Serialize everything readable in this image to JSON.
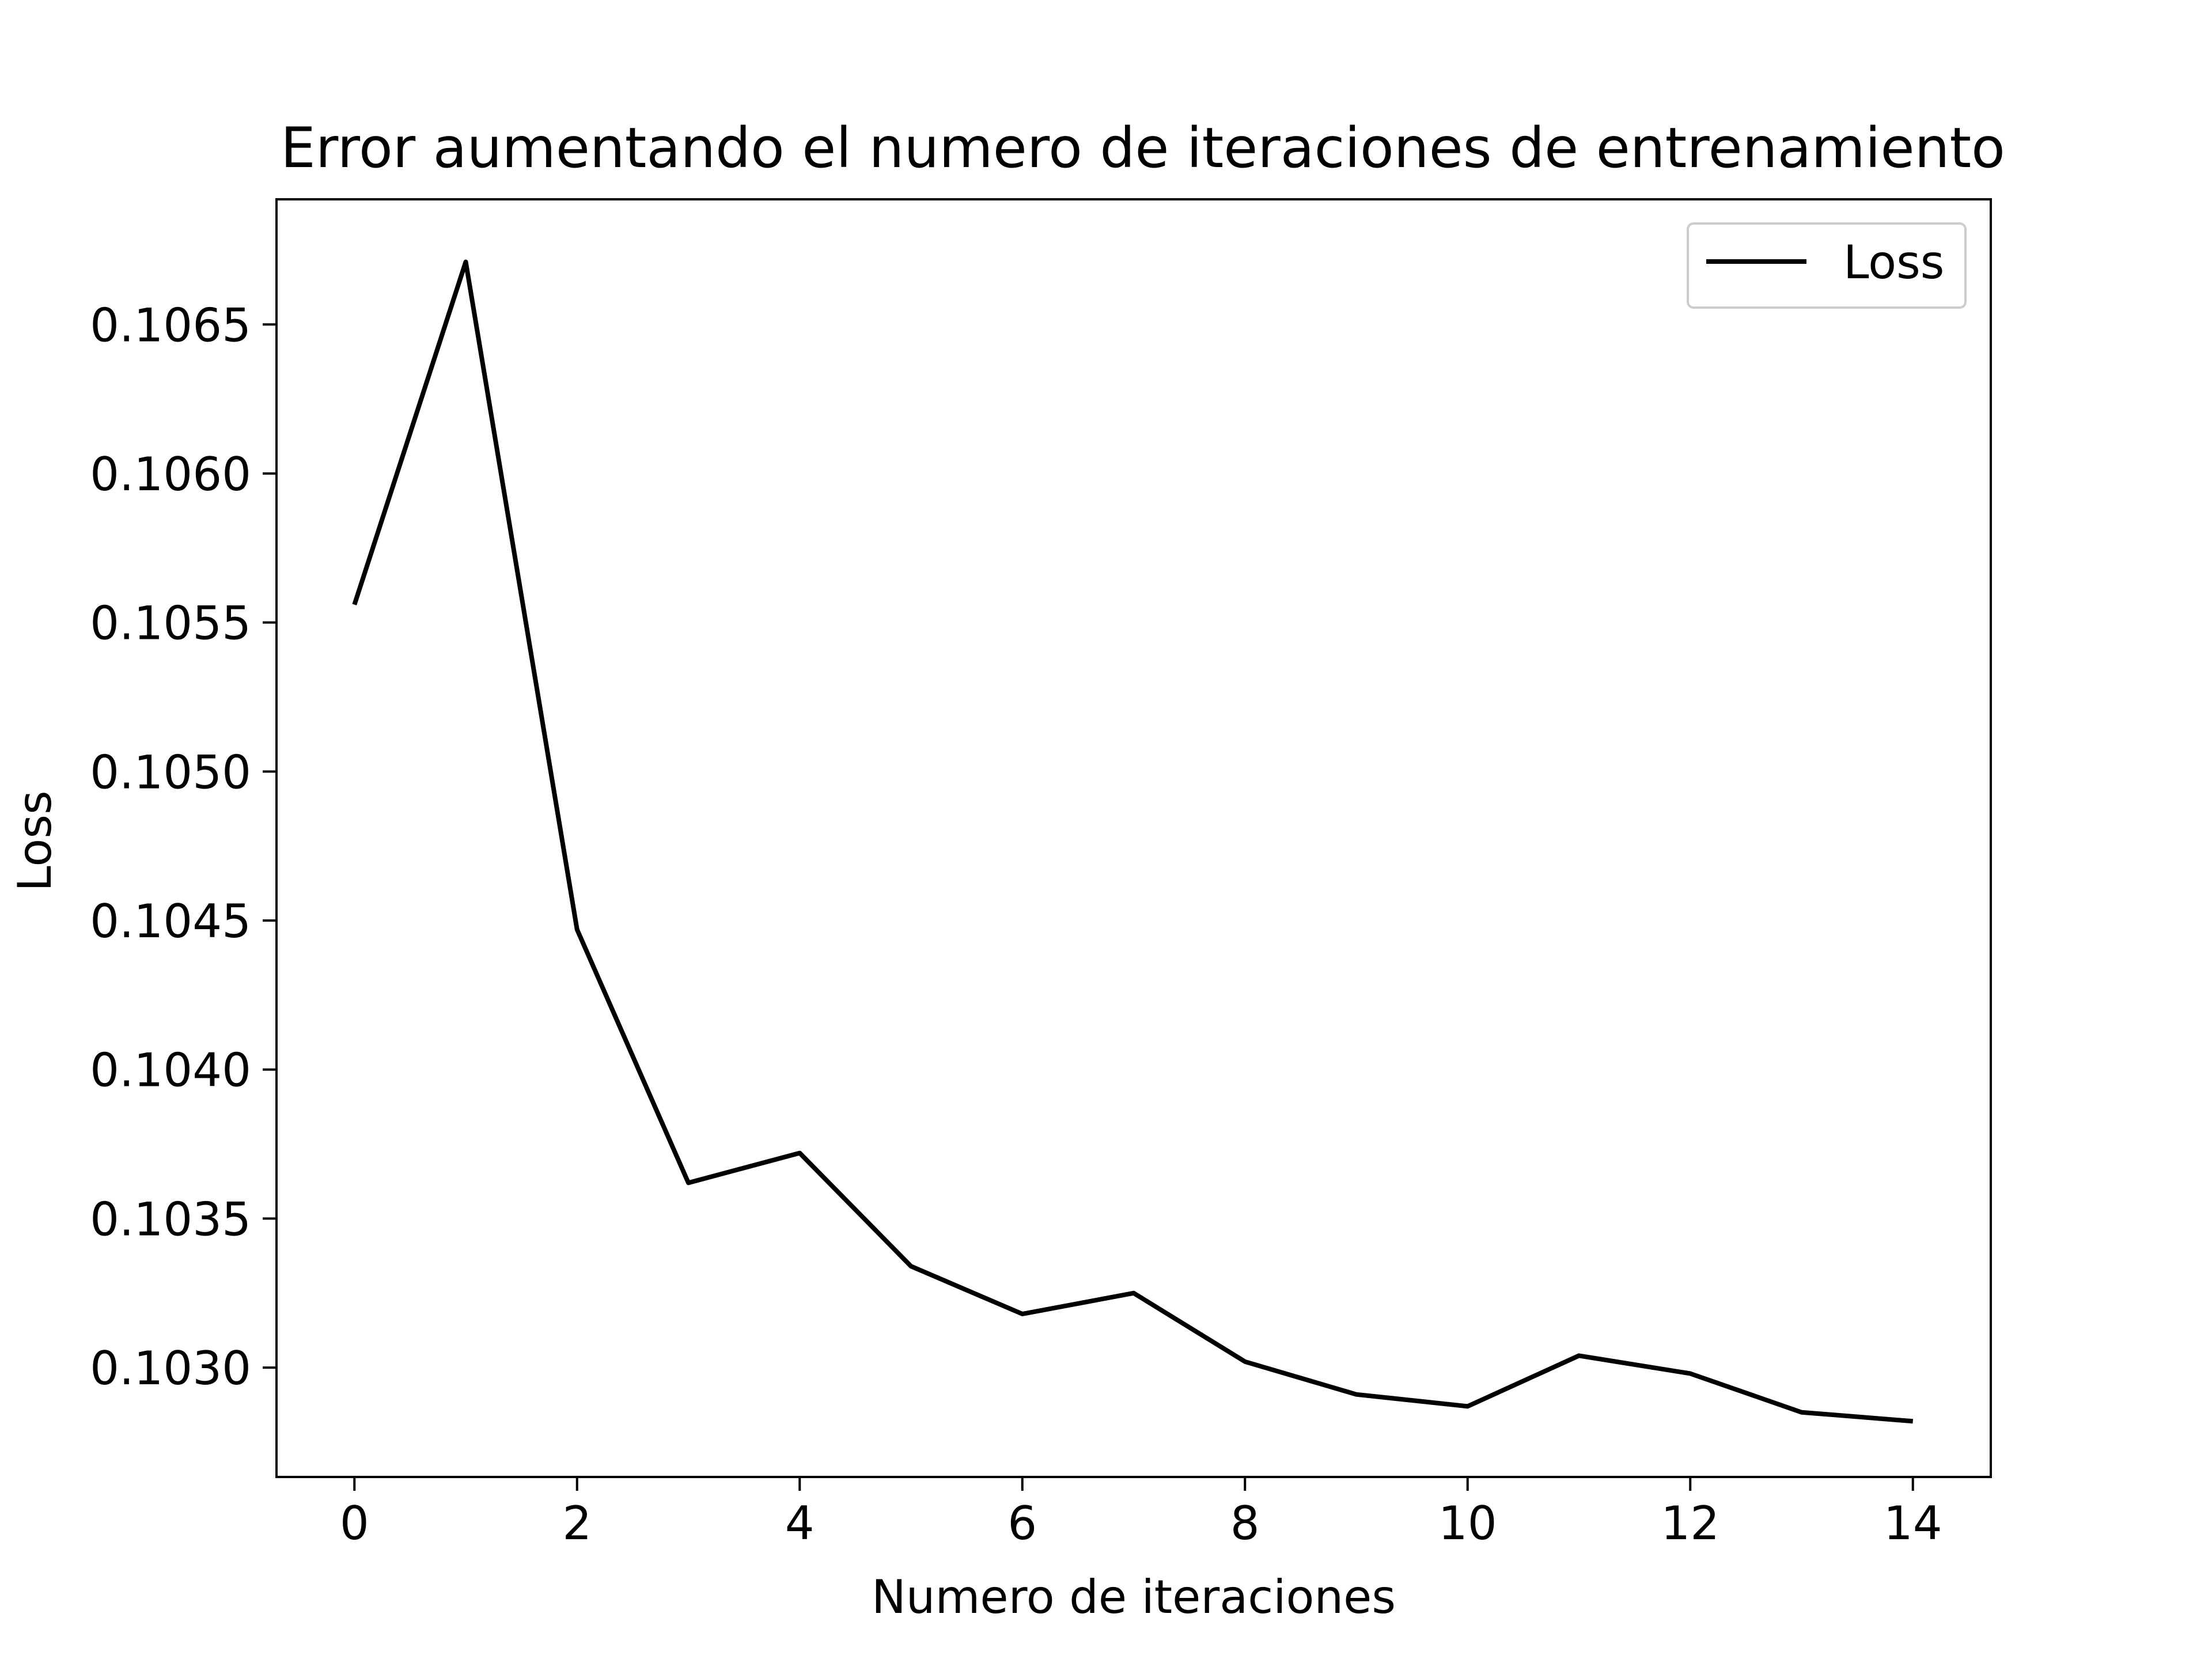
{
  "chart_data": {
    "type": "line",
    "title": "Error aumentando el numero de iteraciones de entrenamiento",
    "xlabel": "Numero de iteraciones",
    "ylabel": "Loss",
    "x": [
      0,
      1,
      2,
      3,
      4,
      5,
      6,
      7,
      8,
      9,
      10,
      11,
      12,
      13,
      14
    ],
    "series": [
      {
        "name": "Loss",
        "color": "#000000",
        "values": [
          0.10556,
          0.10671,
          0.10447,
          0.10362,
          0.10372,
          0.10334,
          0.10318,
          0.10325,
          0.10302,
          0.10291,
          0.10287,
          0.10304,
          0.10298,
          0.10285,
          0.10282
        ]
      }
    ],
    "xlim": [
      -0.7,
      14.7
    ],
    "ylim": [
      0.102633,
      0.10692
    ],
    "xticks": [
      0,
      2,
      4,
      6,
      8,
      10,
      12,
      14
    ],
    "yticks": [
      0.103,
      0.1035,
      0.104,
      0.1045,
      0.105,
      0.1055,
      0.106,
      0.1065
    ],
    "ytick_labels": [
      "0.1030",
      "0.1035",
      "0.1040",
      "0.1045",
      "0.1050",
      "0.1055",
      "0.1060",
      "0.1065"
    ],
    "grid": false,
    "legend": "top-right"
  }
}
